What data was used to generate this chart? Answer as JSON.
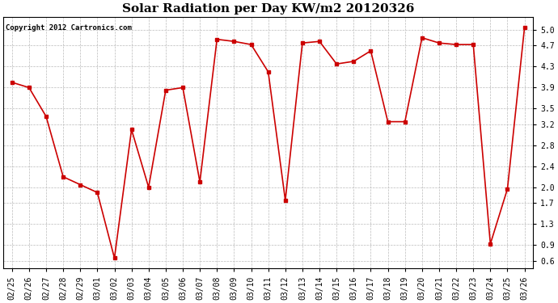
{
  "title": "Solar Radiation per Day KW/m2 20120326",
  "copyright": "Copyright 2012 Cartronics.com",
  "x_labels": [
    "02/25",
    "02/26",
    "02/27",
    "02/28",
    "02/29",
    "03/01",
    "03/02",
    "03/03",
    "03/04",
    "03/05",
    "03/06",
    "03/07",
    "03/08",
    "03/09",
    "03/10",
    "03/11",
    "03/12",
    "03/13",
    "03/14",
    "03/15",
    "03/16",
    "03/17",
    "03/18",
    "03/19",
    "03/20",
    "03/21",
    "03/22",
    "03/23",
    "03/24",
    "03/25",
    "03/26"
  ],
  "values": [
    4.0,
    3.9,
    3.35,
    2.2,
    2.05,
    1.9,
    0.65,
    3.1,
    2.0,
    3.85,
    3.9,
    2.1,
    4.82,
    4.78,
    4.72,
    4.2,
    1.75,
    4.75,
    4.78,
    4.35,
    4.4,
    4.6,
    3.25,
    3.25,
    4.85,
    4.75,
    4.72,
    4.72,
    0.92,
    1.97,
    5.05
  ],
  "line_color": "#cc0000",
  "marker": "s",
  "marker_size": 2.5,
  "bg_color": "#ffffff",
  "grid_color": "#bbbbbb",
  "yticks": [
    0.6,
    0.9,
    1.3,
    1.7,
    2.0,
    2.4,
    2.8,
    3.2,
    3.5,
    3.9,
    4.3,
    4.7,
    5.0
  ],
  "ylim": [
    0.45,
    5.25
  ],
  "title_fontsize": 11,
  "copyright_fontsize": 6.5,
  "tick_fontsize": 7,
  "linewidth": 1.2
}
